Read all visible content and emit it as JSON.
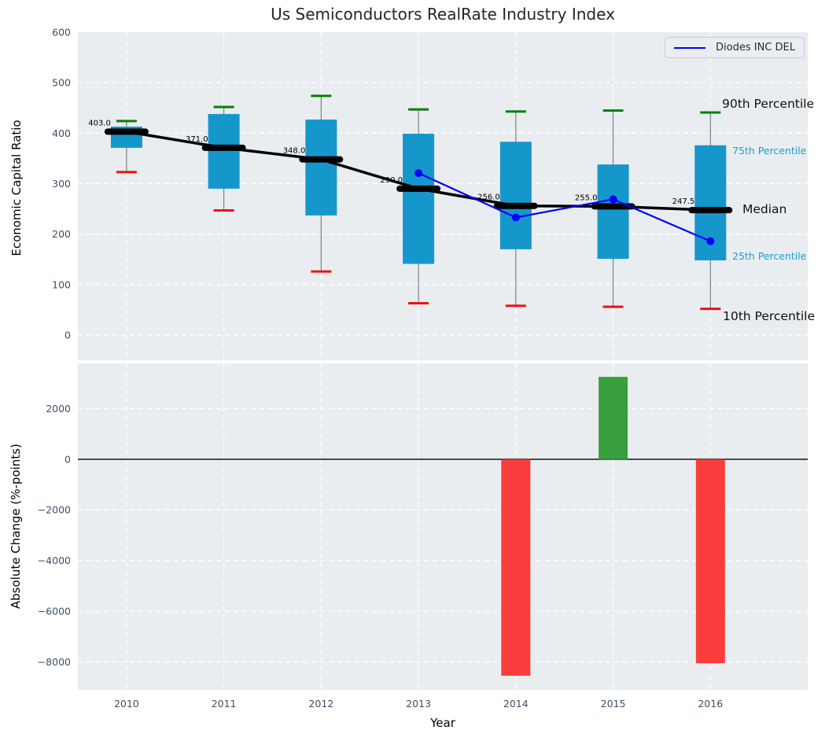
{
  "title": "Us Semiconductors RealRate Industry Index",
  "legend": {
    "label": "Diodes INC DEL"
  },
  "annotations": {
    "p90": "90th Percentile",
    "p75": "75th Percentile",
    "median": "Median",
    "p25": "25th Percentile",
    "p10": "10th Percentile"
  },
  "colors": {
    "plot_bg": "#e9edf0",
    "grid": "#ffffff",
    "box_fill": "#1697cc",
    "whisker": "#7f7f7f",
    "cap_90": "#068006",
    "cap_10": "#ee1111",
    "median": "#000000",
    "company_line": "#0000ff",
    "bar_negative": "#fa3c3c",
    "bar_positive": "#3aa03f",
    "tick_label": "#3d4f63",
    "annotation_accent": "#1e9cd0"
  },
  "chart_data": [
    {
      "type": "boxplot+line",
      "ylabel": "Economic Capital Ratio",
      "ylim": [
        -50,
        600
      ],
      "yticks": [
        600,
        500,
        400,
        300,
        200,
        100,
        0
      ],
      "categories": [
        "2010",
        "2011",
        "2012",
        "2013",
        "2014",
        "2015",
        "2016"
      ],
      "grid": true,
      "boxes": [
        {
          "year": 2010,
          "p10": 323,
          "p25": 371,
          "median": 403.0,
          "p75": 413,
          "p90": 424,
          "median_label": "403.0"
        },
        {
          "year": 2011,
          "p10": 247,
          "p25": 290,
          "median": 371.0,
          "p75": 438,
          "p90": 452,
          "median_label": "371.0"
        },
        {
          "year": 2012,
          "p10": 126,
          "p25": 237,
          "median": 348.0,
          "p75": 427,
          "p90": 474,
          "median_label": "348.0"
        },
        {
          "year": 2013,
          "p10": 63,
          "p25": 141,
          "median": 290.0,
          "p75": 399,
          "p90": 447,
          "median_label": "290.0"
        },
        {
          "year": 2014,
          "p10": 58,
          "p25": 170,
          "median": 256.0,
          "p75": 383,
          "p90": 443,
          "median_label": "256.0"
        },
        {
          "year": 2015,
          "p10": 56,
          "p25": 151,
          "median": 255.0,
          "p75": 338,
          "p90": 445,
          "median_label": "255.0"
        },
        {
          "year": 2016,
          "p10": 52,
          "p25": 148,
          "median": 247.5,
          "p75": 376,
          "p90": 441,
          "median_label": "247.5"
        }
      ],
      "series": [
        {
          "name": "Diodes INC DEL",
          "x": [
            2013,
            2014,
            2015,
            2016
          ],
          "y": [
            321,
            233,
            269,
            186
          ]
        }
      ],
      "legend_position": "upper right"
    },
    {
      "type": "bar",
      "ylabel": "Absolute Change (%-points)",
      "xlabel": "Year",
      "ylim": [
        -9100,
        3780
      ],
      "yticks": [
        2000,
        0,
        -2000,
        -4000,
        -6000,
        -8000
      ],
      "categories": [
        "2010",
        "2011",
        "2012",
        "2013",
        "2014",
        "2015",
        "2016"
      ],
      "values": [
        null,
        null,
        null,
        null,
        -8540,
        3250,
        -8050
      ],
      "grid": true,
      "zero_line": true
    }
  ]
}
